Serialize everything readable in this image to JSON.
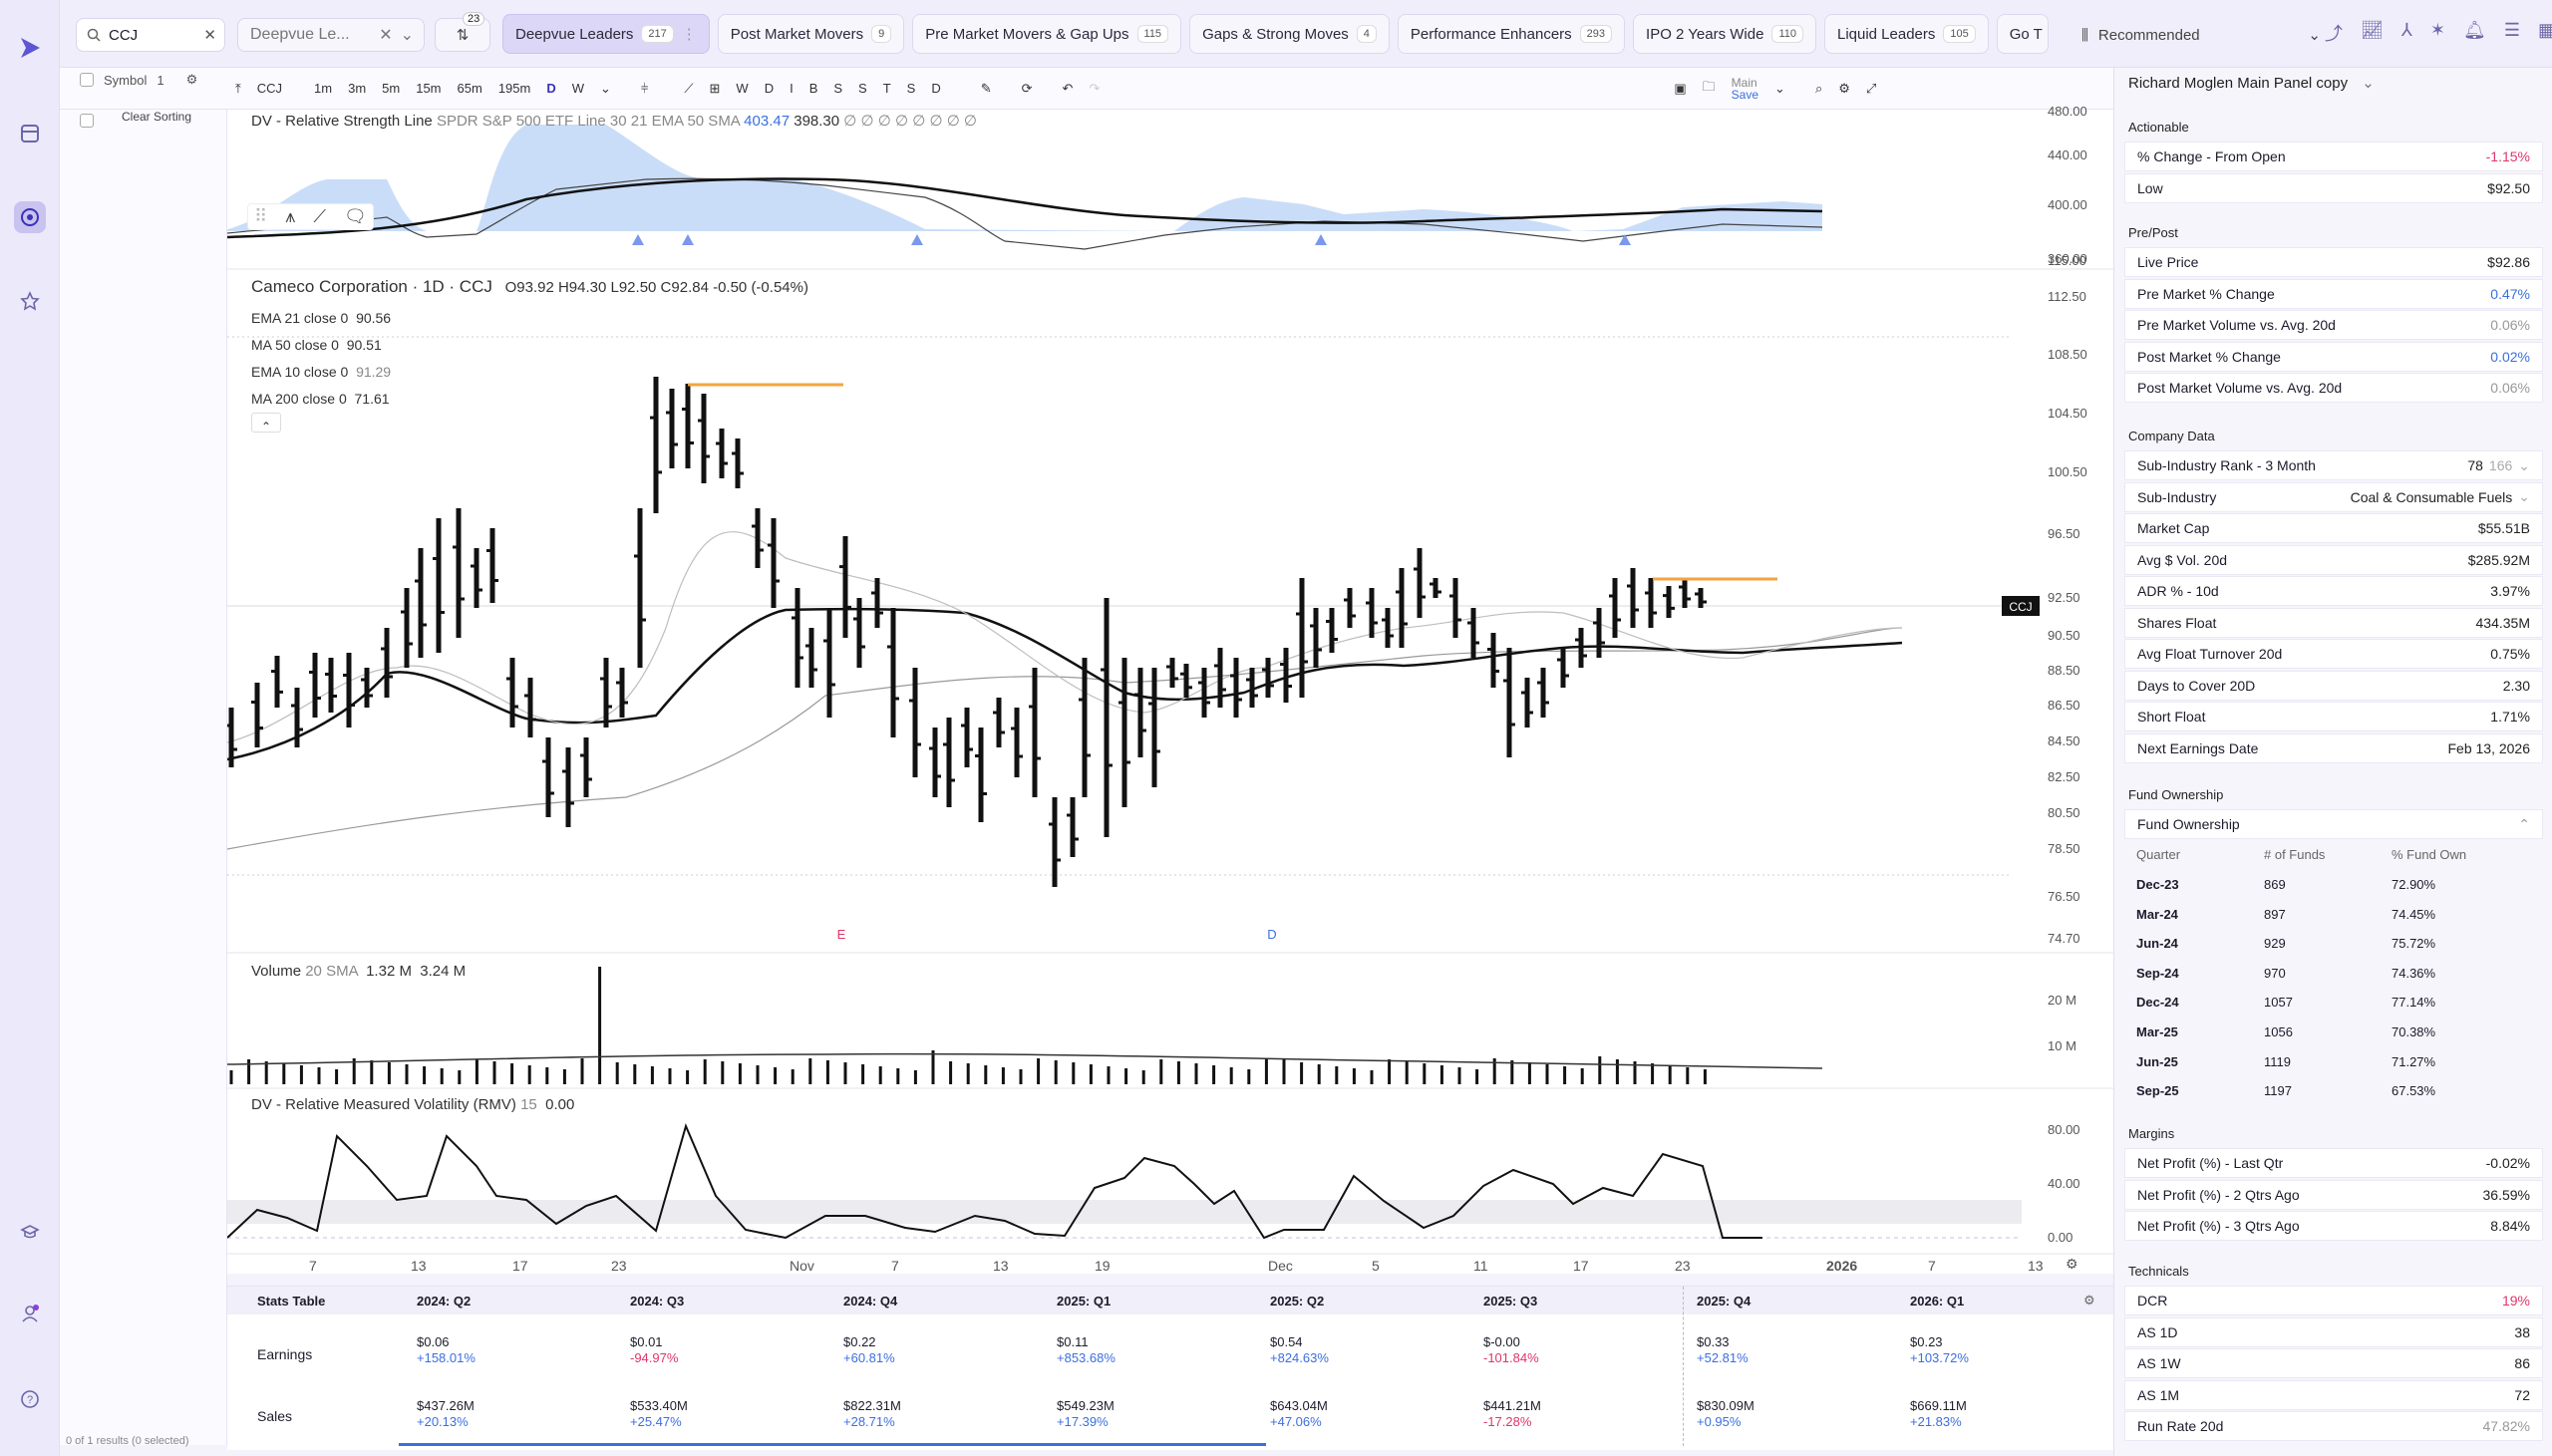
{
  "search": {
    "value": "CCJ"
  },
  "watchlist": {
    "label": "Deepvue Le..."
  },
  "scan_count": "23",
  "screen_tabs": [
    {
      "label": "Deepvue Leaders",
      "count": "217"
    },
    {
      "label": "Post Market Movers",
      "count": "9"
    },
    {
      "label": "Pre Market Movers & Gap Ups",
      "count": "115"
    },
    {
      "label": "Gaps & Strong Moves",
      "count": "4"
    },
    {
      "label": "Performance Enhancers",
      "count": "293"
    },
    {
      "label": "IPO 2 Years Wide",
      "count": "110"
    },
    {
      "label": "Liquid Leaders",
      "count": "105"
    },
    {
      "label": "Go T",
      "count": ""
    }
  ],
  "recommended": "Recommended",
  "toolbar": {
    "symbol": "CCJ",
    "intervals": [
      "1m",
      "3m",
      "5m",
      "15m",
      "65m",
      "195m",
      "D",
      "W"
    ],
    "letters": [
      "W",
      "D",
      "I",
      "B",
      "S",
      "S",
      "T",
      "S",
      "D"
    ],
    "main": "Main",
    "save": "Save"
  },
  "sidecol": {
    "symbol_label": "Symbol",
    "symbol_count": "1",
    "clear_sorting": "Clear Sorting",
    "results": "0 of 1 results (0 selected)"
  },
  "rs_legend": {
    "title": "DV - Relative Strength Line",
    "params": "SPDR S&P 500 ETF Line 30 21 EMA 50 SMA",
    "v1": "403.47",
    "v2": "398.30",
    "tail": "∅ ∅ ∅ ∅ ∅ ∅ ∅ ∅"
  },
  "rs_axis": [
    "480.00",
    "440.00",
    "400.00",
    "360.00"
  ],
  "price_legend": {
    "title": "Cameco Corporation · 1D · CCJ",
    "ohlc": "O93.92  H94.30  L92.50  C92.84  -0.50 (-0.54%)",
    "ema21": "EMA 21 close 0",
    "ema21v": "90.56",
    "ma50": "MA 50 close 0",
    "ma50v": "90.51",
    "ema10": "EMA 10 close 0",
    "ema10v": "91.29",
    "ma200": "MA 200 close 0",
    "ma200v": "71.61"
  },
  "price_axis": [
    "115.00",
    "112.50",
    "108.50",
    "104.50",
    "100.50",
    "96.50",
    "92.50",
    "90.50",
    "88.50",
    "86.50",
    "84.50",
    "82.50",
    "80.50",
    "78.50",
    "76.50",
    "74.70"
  ],
  "price_tag": "CCJ",
  "markers": {
    "e": "E",
    "d": "D"
  },
  "vol_legend": {
    "title": "Volume",
    "params": "20 SMA",
    "v1": "1.32 M",
    "v2": "3.24 M"
  },
  "vol_axis": [
    "20 M",
    "10 M"
  ],
  "rmv_legend": {
    "title": "DV - Relative Measured Volatility (RMV)",
    "params": "15",
    "v1": "0.00"
  },
  "rmv_axis": [
    "80.00",
    "40.00",
    "0.00"
  ],
  "x_axis": [
    "7",
    "13",
    "17",
    "23",
    "Nov",
    "7",
    "13",
    "19",
    "Dec",
    "5",
    "11",
    "17",
    "23",
    "2026",
    "7",
    "13"
  ],
  "stats": {
    "title": "Stats Table",
    "quarters": [
      "2024: Q2",
      "2024: Q3",
      "2024: Q4",
      "2025: Q1",
      "2025: Q2",
      "2025: Q3",
      "2025: Q4",
      "2026: Q1"
    ],
    "earnings_label": "Earnings",
    "sales_label": "Sales",
    "earnings": [
      {
        "v": "$0.06",
        "c": "+158.01%",
        "s": "pos"
      },
      {
        "v": "$0.01",
        "c": "-94.97%",
        "s": "neg"
      },
      {
        "v": "$0.22",
        "c": "+60.81%",
        "s": "pos"
      },
      {
        "v": "$0.11",
        "c": "+853.68%",
        "s": "pos"
      },
      {
        "v": "$0.54",
        "c": "+824.63%",
        "s": "pos"
      },
      {
        "v": "$-0.00",
        "c": "-101.84%",
        "s": "neg"
      },
      {
        "v": "$0.33",
        "c": "+52.81%",
        "s": "pos"
      },
      {
        "v": "$0.23",
        "c": "+103.72%",
        "s": "pos"
      }
    ],
    "sales": [
      {
        "v": "$437.26M",
        "c": "+20.13%",
        "s": "pos"
      },
      {
        "v": "$533.40M",
        "c": "+25.47%",
        "s": "pos"
      },
      {
        "v": "$822.31M",
        "c": "+28.71%",
        "s": "pos"
      },
      {
        "v": "$549.23M",
        "c": "+17.39%",
        "s": "pos"
      },
      {
        "v": "$643.04M",
        "c": "+47.06%",
        "s": "pos"
      },
      {
        "v": "$441.21M",
        "c": "-17.28%",
        "s": "neg"
      },
      {
        "v": "$830.09M",
        "c": "+0.95%",
        "s": "pos"
      },
      {
        "v": "$669.11M",
        "c": "+21.83%",
        "s": "pos"
      }
    ]
  },
  "panel": {
    "title": "Richard Moglen Main Panel copy",
    "actionable_title": "Actionable",
    "actionable": [
      {
        "label": "% Change - From Open",
        "value": "-1.15%",
        "s": "neg"
      },
      {
        "label": "Low",
        "value": "$92.50",
        "s": ""
      }
    ],
    "prepost_title": "Pre/Post",
    "prepost": [
      {
        "label": "Live Price",
        "value": "$92.86",
        "s": ""
      },
      {
        "label": "Pre Market % Change",
        "value": "0.47%",
        "s": "pos"
      },
      {
        "label": "Pre Market Volume vs. Avg. 20d",
        "value": "0.06%",
        "s": "muted"
      },
      {
        "label": "Post Market % Change",
        "value": "0.02%",
        "s": "pos"
      },
      {
        "label": "Post Market Volume vs. Avg. 20d",
        "value": "0.06%",
        "s": "muted"
      }
    ],
    "company_title": "Company Data",
    "company": [
      {
        "label": "Sub-Industry Rank - 3 Month",
        "value": "78",
        "s": ""
      },
      {
        "label": "Sub-Industry",
        "value": "Coal & Consumable Fuels",
        "s": ""
      },
      {
        "label": "Market Cap",
        "value": "$55.51B",
        "s": ""
      },
      {
        "label": "Avg $ Vol. 20d",
        "value": "$285.92M",
        "s": ""
      },
      {
        "label": "ADR % - 10d",
        "value": "3.97%",
        "s": ""
      },
      {
        "label": "Shares Float",
        "value": "434.35M",
        "s": ""
      },
      {
        "label": "Avg Float Turnover 20d",
        "value": "0.75%",
        "s": ""
      },
      {
        "label": "Days to Cover 20D",
        "value": "2.30",
        "s": ""
      },
      {
        "label": "Short Float",
        "value": "1.71%",
        "s": ""
      },
      {
        "label": "Next Earnings Date",
        "value": "Feb 13, 2026",
        "s": ""
      }
    ],
    "subind_extra": "166",
    "fund_title": "Fund Ownership",
    "fund_sub": "Fund Ownership",
    "fund_headers": [
      "Quarter",
      "# of Funds",
      "% Fund Own"
    ],
    "fund_rows": [
      [
        "Dec-23",
        "869",
        "72.90%"
      ],
      [
        "Mar-24",
        "897",
        "74.45%"
      ],
      [
        "Jun-24",
        "929",
        "75.72%"
      ],
      [
        "Sep-24",
        "970",
        "74.36%"
      ],
      [
        "Dec-24",
        "1057",
        "77.14%"
      ],
      [
        "Mar-25",
        "1056",
        "70.38%"
      ],
      [
        "Jun-25",
        "1119",
        "71.27%"
      ],
      [
        "Sep-25",
        "1197",
        "67.53%"
      ]
    ],
    "margins_title": "Margins",
    "margins": [
      {
        "label": "Net Profit (%) - Last Qtr",
        "value": "-0.02%",
        "s": ""
      },
      {
        "label": "Net Profit (%) - 2 Qtrs Ago",
        "value": "36.59%",
        "s": ""
      },
      {
        "label": "Net Profit (%) - 3 Qtrs Ago",
        "value": "8.84%",
        "s": ""
      }
    ],
    "tech_title": "Technicals",
    "tech": [
      {
        "label": "DCR",
        "value": "19%",
        "s": "neg"
      },
      {
        "label": "AS 1D",
        "value": "38",
        "s": ""
      },
      {
        "label": "AS 1W",
        "value": "86",
        "s": ""
      },
      {
        "label": "AS 1M",
        "value": "72",
        "s": ""
      },
      {
        "label": "Run Rate 20d",
        "value": "47.82%",
        "s": "muted"
      }
    ]
  },
  "colors": {
    "accent": "#3a33b8",
    "pos": "#3b6fe0",
    "neg": "#e0356a",
    "orange": "#f5a340"
  }
}
